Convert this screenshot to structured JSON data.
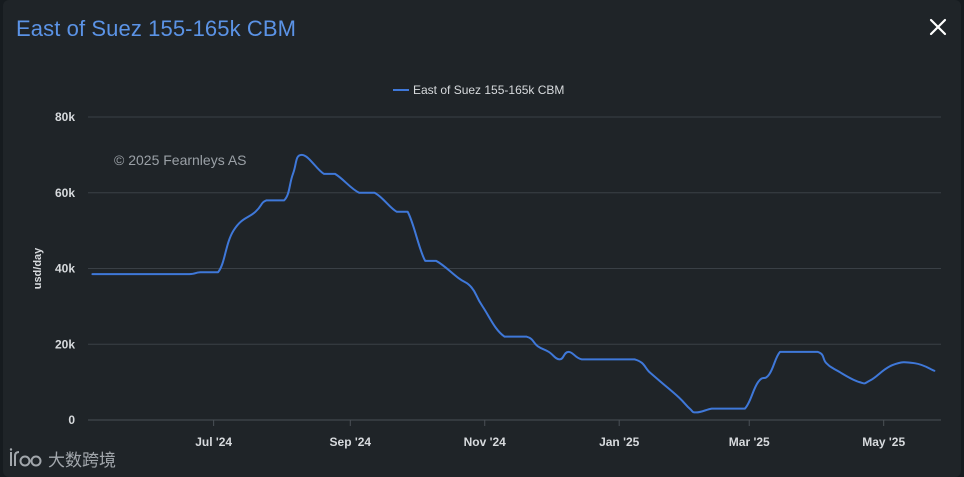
{
  "modal": {
    "title": "East of Suez 155-165k CBM",
    "close_icon": "close-icon"
  },
  "colors": {
    "background": "#1f2428",
    "title": "#5b93e6",
    "series": "#3f78d9",
    "grid": "#3a4046",
    "text": "#d7dadd"
  },
  "watermark": {
    "credit": "© 2025 Fearnleys AS",
    "site_logo": "ifoo-logo-icon",
    "site_name": "大数跨境"
  },
  "chart_data": {
    "type": "line",
    "title": "",
    "xlabel": "",
    "ylabel": "usd/day",
    "ylim": [
      0,
      80000
    ],
    "yticks": [
      0,
      20000,
      40000,
      60000,
      80000
    ],
    "ytick_labels": [
      "0",
      "20k",
      "40k",
      "60k",
      "80k"
    ],
    "xticks": [
      "2024-07-01",
      "2024-09-01",
      "2024-11-01",
      "2025-01-01",
      "2025-03-01",
      "2025-05-01"
    ],
    "xtick_labels": [
      "Jul '24",
      "Sep '24",
      "Nov '24",
      "Jan '25",
      "Mar '25",
      "May '25"
    ],
    "xlim": [
      "2024-05-05",
      "2025-05-27"
    ],
    "grid": true,
    "legend": "top-center",
    "series": [
      {
        "name": "East of Suez 155-165k CBM",
        "x": [
          "2024-05-07",
          "2024-06-01",
          "2024-06-10",
          "2024-06-20",
          "2024-06-25",
          "2024-07-03",
          "2024-07-10",
          "2024-07-20",
          "2024-07-25",
          "2024-08-02",
          "2024-08-06",
          "2024-08-10",
          "2024-08-20",
          "2024-08-25",
          "2024-09-05",
          "2024-09-12",
          "2024-09-22",
          "2024-09-27",
          "2024-10-05",
          "2024-10-10",
          "2024-10-20",
          "2024-10-26",
          "2024-10-31",
          "2024-11-10",
          "2024-11-20",
          "2024-11-25",
          "2024-11-30",
          "2024-12-05",
          "2024-12-09",
          "2024-12-15",
          "2024-12-24",
          "2025-01-08",
          "2025-01-15",
          "2025-01-20",
          "2025-01-28",
          "2025-02-02",
          "2025-02-05",
          "2025-02-12",
          "2025-02-16",
          "2025-02-21",
          "2025-02-27",
          "2025-03-05",
          "2025-03-10",
          "2025-03-15",
          "2025-03-20",
          "2025-04-01",
          "2025-04-05",
          "2025-04-10",
          "2025-04-20",
          "2025-04-25",
          "2025-05-05",
          "2025-05-15",
          "2025-05-24"
        ],
        "y": [
          38500,
          38500,
          38500,
          38500,
          39000,
          39000,
          50000,
          55000,
          58000,
          58000,
          65000,
          70000,
          65000,
          65000,
          60000,
          60000,
          55000,
          55000,
          42000,
          42000,
          37500,
          35000,
          30000,
          22000,
          22000,
          19500,
          18000,
          16000,
          18000,
          16000,
          16000,
          16000,
          12500,
          10000,
          6000,
          3000,
          2000,
          3000,
          3000,
          3000,
          3000,
          10000,
          12000,
          18000,
          18000,
          18000,
          15000,
          13000,
          10000,
          10500,
          14500,
          15000,
          13000
        ]
      }
    ]
  }
}
